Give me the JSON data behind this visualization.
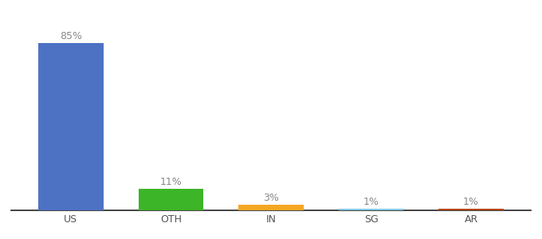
{
  "categories": [
    "US",
    "OTH",
    "IN",
    "SG",
    "AR"
  ],
  "values": [
    85,
    11,
    3,
    1,
    1
  ],
  "bar_colors": [
    "#4d72c4",
    "#3db528",
    "#f5a623",
    "#7ec8e3",
    "#b5460f"
  ],
  "labels": [
    "85%",
    "11%",
    "3%",
    "1%",
    "1%"
  ],
  "ylim": [
    0,
    97
  ],
  "background_color": "#ffffff",
  "label_fontsize": 9,
  "tick_fontsize": 9,
  "label_color": "#888888",
  "tick_color": "#555555",
  "spine_color": "#222222",
  "bar_width": 0.65
}
